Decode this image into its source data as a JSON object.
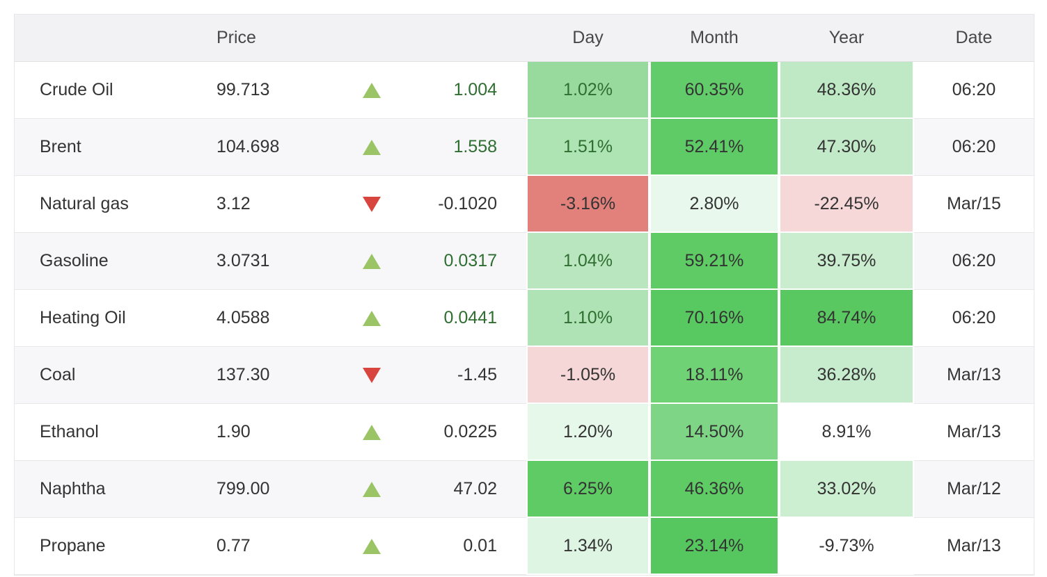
{
  "colors": {
    "header_bg": "#f2f2f4",
    "header_text": "#48484c",
    "body_text": "#333333",
    "positive_text": "#2f6e31",
    "row_stripe": "#f7f7f9",
    "row_border": "#e8e8ea",
    "arrow_up": "#9ac465",
    "arrow_down": "#d8453f"
  },
  "table": {
    "headers": {
      "name": "",
      "price": "Price",
      "arrow": "",
      "change": "",
      "day": "Day",
      "month": "Month",
      "year": "Year",
      "date": "Date"
    },
    "rows": [
      {
        "name": "Crude Oil",
        "price": "99.713",
        "direction": "up",
        "change": "1.004",
        "change_color": "positive",
        "day": {
          "text": "1.02%",
          "bg": "#98da9e",
          "color": "positive"
        },
        "month": {
          "text": "60.35%",
          "bg": "#61cc69"
        },
        "year": {
          "text": "48.36%",
          "bg": "#bfe9c5"
        },
        "date": "06:20"
      },
      {
        "name": "Brent",
        "price": "104.698",
        "direction": "up",
        "change": "1.558",
        "change_color": "positive",
        "day": {
          "text": "1.51%",
          "bg": "#aee3b4",
          "color": "positive"
        },
        "month": {
          "text": "52.41%",
          "bg": "#5ecb66"
        },
        "year": {
          "text": "47.30%",
          "bg": "#c2eac8"
        },
        "date": "06:20"
      },
      {
        "name": "Natural gas",
        "price": "3.12",
        "direction": "down",
        "change": "-0.1020",
        "change_color": "neutral",
        "day": {
          "text": "-3.16%",
          "bg": "#e2807b"
        },
        "month": {
          "text": "2.80%",
          "bg": "#e8f8ec"
        },
        "year": {
          "text": "-22.45%",
          "bg": "#f7d8d9"
        },
        "date": "Mar/15"
      },
      {
        "name": "Gasoline",
        "price": "3.0731",
        "direction": "up",
        "change": "0.0317",
        "change_color": "positive",
        "day": {
          "text": "1.04%",
          "bg": "#b9e6bf",
          "color": "positive"
        },
        "month": {
          "text": "59.21%",
          "bg": "#5ecb64"
        },
        "year": {
          "text": "39.75%",
          "bg": "#c9edce"
        },
        "date": "06:20"
      },
      {
        "name": "Heating Oil",
        "price": "4.0588",
        "direction": "up",
        "change": "0.0441",
        "change_color": "positive",
        "day": {
          "text": "1.10%",
          "bg": "#afe3b5",
          "color": "positive"
        },
        "month": {
          "text": "70.16%",
          "bg": "#58c860"
        },
        "year": {
          "text": "84.74%",
          "bg": "#5ac861"
        },
        "date": "06:20"
      },
      {
        "name": "Coal",
        "price": "137.30",
        "direction": "down",
        "change": "-1.45",
        "change_color": "neutral",
        "day": {
          "text": "-1.05%",
          "bg": "#f6d7d7"
        },
        "month": {
          "text": "18.11%",
          "bg": "#6fd275"
        },
        "year": {
          "text": "36.28%",
          "bg": "#c7eccd"
        },
        "date": "Mar/13"
      },
      {
        "name": "Ethanol",
        "price": "1.90",
        "direction": "up",
        "change": "0.0225",
        "change_color": "neutral",
        "day": {
          "text": "1.20%",
          "bg": "#e6f8e9"
        },
        "month": {
          "text": "14.50%",
          "bg": "#7dd585"
        },
        "year": {
          "text": "8.91%",
          "bg": ""
        },
        "date": "Mar/13"
      },
      {
        "name": "Naphtha",
        "price": "799.00",
        "direction": "up",
        "change": "47.02",
        "change_color": "neutral",
        "day": {
          "text": "6.25%",
          "bg": "#5fcb65"
        },
        "month": {
          "text": "46.36%",
          "bg": "#5ecb65"
        },
        "year": {
          "text": "33.02%",
          "bg": "#cceed1"
        },
        "date": "Mar/12"
      },
      {
        "name": "Propane",
        "price": "0.77",
        "direction": "up",
        "change": "0.01",
        "change_color": "neutral",
        "day": {
          "text": "1.34%",
          "bg": "#def5e3"
        },
        "month": {
          "text": "23.14%",
          "bg": "#56c75f"
        },
        "year": {
          "text": "-9.73%",
          "bg": ""
        },
        "date": "Mar/13"
      }
    ]
  }
}
